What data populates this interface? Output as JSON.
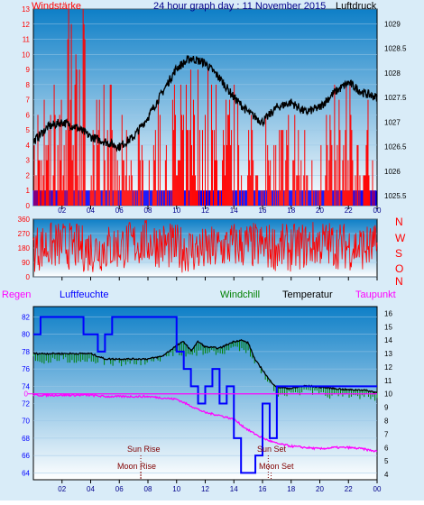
{
  "header": {
    "left_label": "Windstärke",
    "title": "24 hour graph day : 11 November 2015",
    "right_label": "Luftdruck"
  },
  "colors": {
    "frame": "#d9ecf8",
    "bg_top": "#0e7fc7",
    "bg_bottom": "#ffffff",
    "wind": "#ff0000",
    "calm": "#0000ff",
    "pressure": "#000000",
    "humidity": "#0000ff",
    "temperature": "#000000",
    "windchill": "#008000",
    "dewpoint": "#ff00ff",
    "rain": "#ff00ff",
    "astro": "#800000"
  },
  "time_ticks": [
    "02",
    "04",
    "06",
    "08",
    "10",
    "12",
    "14",
    "16",
    "18",
    "20",
    "22",
    "00"
  ],
  "chart_data": [
    {
      "type": "line",
      "panel": "wind_pressure",
      "y_left": {
        "label": "Windstärke",
        "ticks": [
          0,
          1,
          2,
          3,
          4,
          5,
          6,
          7,
          8,
          9,
          10,
          11,
          12,
          13
        ],
        "ylim": [
          0,
          13
        ]
      },
      "y_right": {
        "label": "Luftdruck",
        "ticks": [
          "1025.5",
          "1026",
          "1026.5",
          "1027",
          "1027.5",
          "1028",
          "1028.5",
          "1029"
        ],
        "ylim": [
          1025.3,
          1029.3
        ]
      },
      "series": [
        {
          "name": "Windstärke",
          "type": "bar",
          "axis": "left",
          "hours": [
            0,
            1,
            2,
            3,
            4,
            5,
            6,
            7,
            8,
            9,
            10,
            11,
            12,
            13,
            14,
            15,
            16,
            17,
            18,
            19,
            20,
            21,
            22,
            23,
            24
          ],
          "values": [
            4,
            5,
            9,
            12,
            5,
            6,
            4,
            3,
            4,
            5,
            5,
            6,
            7,
            6,
            5,
            4,
            4,
            3,
            4,
            4,
            4,
            5,
            6,
            5,
            3
          ]
        },
        {
          "name": "Luftdruck",
          "type": "line",
          "axis": "right",
          "hours": [
            0,
            1,
            2,
            3,
            4,
            5,
            6,
            7,
            8,
            9,
            10,
            11,
            12,
            13,
            14,
            15,
            16,
            17,
            18,
            19,
            20,
            21,
            22,
            23,
            24
          ],
          "values": [
            1026.6,
            1026.9,
            1027.0,
            1026.9,
            1026.7,
            1026.6,
            1026.5,
            1026.7,
            1027.1,
            1027.6,
            1028.1,
            1028.3,
            1028.2,
            1027.9,
            1027.5,
            1027.2,
            1027.0,
            1027.3,
            1027.4,
            1027.2,
            1027.3,
            1027.6,
            1027.8,
            1027.6,
            1027.5
          ]
        }
      ]
    },
    {
      "type": "scatter",
      "panel": "wind_direction",
      "y_left": {
        "ticks": [
          0,
          90,
          180,
          270,
          360
        ],
        "ylim": [
          0,
          360
        ]
      },
      "y_right": {
        "labels": [
          "N",
          "W",
          "S",
          "O",
          "N"
        ]
      },
      "series": [
        {
          "name": "Windrichtung",
          "hours": [
            0,
            2,
            4,
            6,
            8,
            10,
            12,
            14,
            16,
            18,
            20,
            22,
            24
          ],
          "values": [
            180,
            200,
            170,
            190,
            220,
            180,
            160,
            200,
            190,
            180,
            210,
            190,
            180
          ]
        }
      ]
    },
    {
      "type": "line",
      "panel": "humidity_temperature",
      "legend": [
        "Regen",
        "Luftfeuchte",
        "Windchill",
        "Temperatur",
        "Taupunkt"
      ],
      "y_left": {
        "label": "Luftfeuchte",
        "ticks": [
          64,
          66,
          68,
          70,
          72,
          74,
          76,
          78,
          80,
          82
        ],
        "ylim": [
          63.2,
          83.2
        ]
      },
      "y_right": {
        "label": "Temperatur",
        "ticks": [
          4,
          5,
          6,
          7,
          8,
          9,
          10,
          11,
          12,
          13,
          14,
          15,
          16
        ],
        "ylim": [
          3.6,
          16.5
        ]
      },
      "rain_tick": "0",
      "annotations": [
        "Sun Rise",
        "Moon Rise",
        "Sun Set",
        "Moon Set"
      ],
      "series": [
        {
          "name": "Luftfeuchte",
          "axis": "left",
          "hours": [
            0,
            0.5,
            2,
            3.5,
            4.5,
            5,
            5.5,
            6,
            7,
            8,
            9,
            10,
            10.5,
            11,
            11.5,
            12,
            12.5,
            13,
            13.5,
            14,
            14.5,
            15,
            15.5,
            16,
            16.5,
            17,
            18,
            19,
            20,
            21,
            22,
            23,
            24
          ],
          "values": [
            80,
            82,
            82,
            80,
            78,
            80,
            82,
            82,
            82,
            82,
            82,
            78,
            76,
            74,
            72,
            74,
            76,
            72,
            74,
            68,
            64,
            64,
            66,
            72,
            68,
            74,
            74,
            74,
            74,
            74,
            74,
            74,
            74
          ]
        },
        {
          "name": "Temperatur",
          "axis": "right",
          "hours": [
            0,
            1,
            2,
            3,
            4,
            5,
            6,
            7,
            8,
            9,
            10,
            10.5,
            11,
            11.5,
            12,
            13,
            14,
            14.5,
            15,
            15.5,
            16,
            16.5,
            17,
            18,
            19,
            20,
            21,
            22,
            23,
            24
          ],
          "values": [
            13,
            13,
            13,
            13,
            13,
            12.6,
            12.6,
            12.6,
            12.6,
            12.8,
            13.6,
            13.9,
            13.2,
            13.9,
            13.5,
            13.4,
            13.9,
            14.0,
            13.8,
            12.5,
            11.8,
            11.0,
            10.5,
            10.4,
            10.6,
            10.5,
            10.4,
            10.3,
            10.3,
            10.1
          ]
        },
        {
          "name": "Windchill",
          "axis": "right",
          "hours": [
            0,
            1,
            2,
            3,
            4,
            5,
            6,
            7,
            8,
            9,
            10,
            11,
            12,
            13,
            14,
            15,
            16,
            17,
            18,
            19,
            20,
            21,
            22,
            23,
            24
          ],
          "values": [
            12.8,
            12.6,
            12.9,
            12.7,
            12.8,
            12.6,
            12.5,
            12.6,
            12.6,
            12.8,
            13.4,
            13.1,
            13.4,
            13.2,
            13.7,
            13.5,
            11.8,
            10.3,
            10.2,
            10.4,
            10.2,
            10.1,
            10.0,
            10.1,
            9.9
          ]
        },
        {
          "name": "Taupunkt",
          "axis": "right",
          "hours": [
            0,
            1,
            2,
            3,
            4,
            5,
            6,
            7,
            8,
            9,
            10,
            11,
            12,
            13,
            14,
            15,
            16,
            17,
            18,
            19,
            20,
            21,
            22,
            23,
            24
          ],
          "values": [
            9.9,
            9.9,
            9.9,
            9.9,
            9.9,
            9.8,
            9.8,
            9.8,
            9.8,
            9.7,
            9.6,
            9.1,
            8.6,
            8.4,
            8.1,
            7.3,
            6.7,
            6.3,
            6.1,
            6.0,
            5.9,
            6.0,
            6.0,
            5.9,
            5.7
          ]
        }
      ]
    }
  ]
}
